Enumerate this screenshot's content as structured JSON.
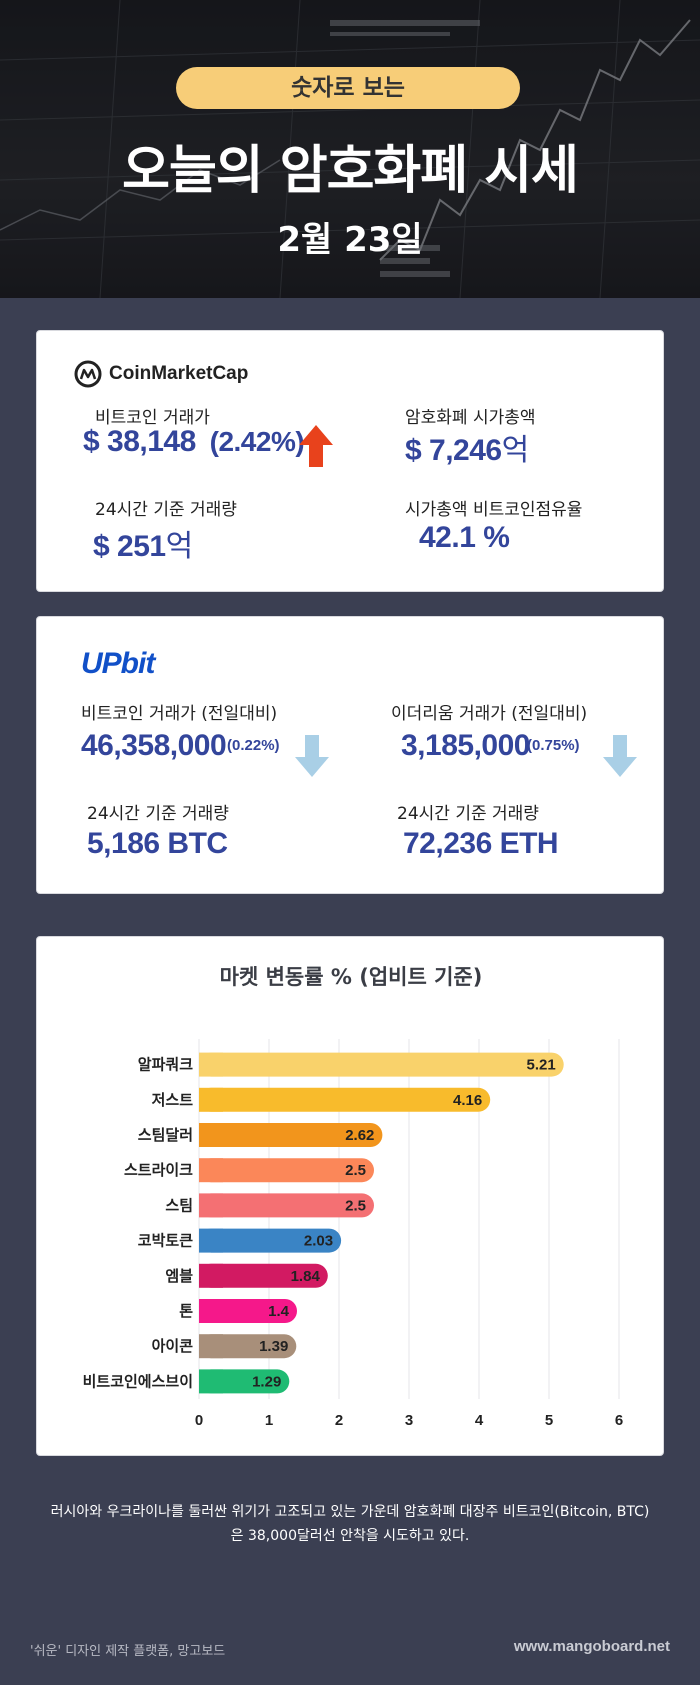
{
  "header": {
    "pill": "숫자로 보는",
    "title": "오늘의 암호화폐 시세",
    "date": "2월 23일"
  },
  "coinmarketcap": {
    "logo_text": "CoinMarketCap",
    "btc_price_label": "비트코인 거래가",
    "btc_price_value": "$ 38,148",
    "btc_price_change": "(2.42%)",
    "btc_trend": "up",
    "market_cap_label": "암호화폐 시가총액",
    "market_cap_value": "$ 7,246",
    "market_cap_unit": "억",
    "volume_label": "24시간 기준 거래량",
    "volume_value": "$ 251",
    "volume_unit": "억",
    "dominance_label": "시가총액 비트코인점유율",
    "dominance_value": "42.1 %"
  },
  "upbit": {
    "logo_text": "UPbit",
    "btc_label": "비트코인 거래가 (전일대비)",
    "btc_value": "46,358,000",
    "btc_change": "(0.22%)",
    "btc_trend": "down",
    "eth_label": "이더리움 거래가 (전일대비)",
    "eth_value": "3,185,000",
    "eth_change": "(0.75%)",
    "eth_trend": "down",
    "btc_volume_label": "24시간 기준 거래량",
    "btc_volume_value": "5,186 BTC",
    "eth_volume_label": "24시간 기준 거래량",
    "eth_volume_value": "72,236 ETH"
  },
  "colors": {
    "accent_blue": "#33459b",
    "up_arrow": "#e8421c",
    "down_arrow": "#a9cfe6",
    "pill": "#f7cd78",
    "background": "#3b3f52"
  },
  "chart_data": {
    "type": "bar",
    "orientation": "horizontal",
    "title": "마켓 변동률 % (업비트 기준)",
    "categories": [
      "알파쿼크",
      "저스트",
      "스팀달러",
      "스트라이크",
      "스팀",
      "코박토큰",
      "엠블",
      "톤",
      "아이콘",
      "비트코인에스브이"
    ],
    "values": [
      5.21,
      4.16,
      2.62,
      2.5,
      2.5,
      2.03,
      1.84,
      1.4,
      1.39,
      1.29
    ],
    "colors": [
      "#f9d26b",
      "#f8bb2c",
      "#f2951c",
      "#fb8759",
      "#f47073",
      "#3a84c5",
      "#d21a62",
      "#f5188a",
      "#a88f7a",
      "#1fbb73"
    ],
    "xlim": [
      0,
      6
    ],
    "xticks": [
      0,
      1,
      2,
      3,
      4,
      5,
      6
    ],
    "grid": true
  },
  "footer": {
    "caption_line1": "러시아와 우크라이나를 둘러싼 위기가 고조되고 있는 가운데 암호화폐 대장주 비트코인(Bitcoin, BTC)",
    "caption_line2": "은 38,000달러선 안착을 시도하고 있다.",
    "credit": "'쉬운' 디자인 제작 플랫폼, 망고보드",
    "site": "www.mangoboard.net"
  }
}
